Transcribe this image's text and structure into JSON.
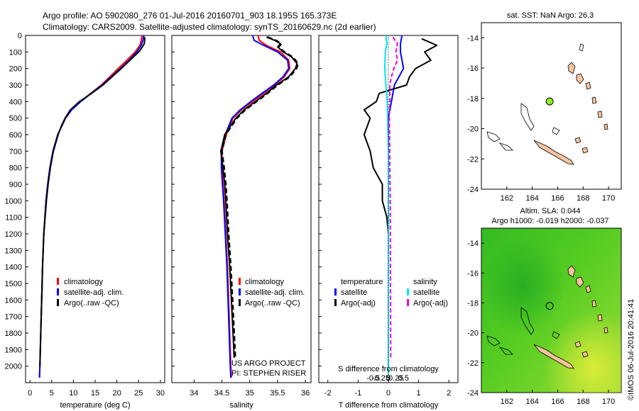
{
  "header": {
    "title_line1": "Argo profile: AO 5902080_276 01-Jul-2016 20160701_903 18.195S 165.373E",
    "title_line2": "Climatology: CARS2009. Satellite-adjusted climatology: synTS_20160629.nc (2d earlier)"
  },
  "colors": {
    "climatology": "#ff0000",
    "satellite": "#0000ff",
    "argo": "#000000",
    "temp_satellite": "#0000ff",
    "salinity_satellite": "#00e5ee",
    "salinity_argo": "#ee00ee",
    "land": "#f5c4a0",
    "float_marker": "#88ee22"
  },
  "depth_axis": {
    "ylim": [
      0,
      2100
    ],
    "ticks": [
      "0",
      "100",
      "200",
      "300",
      "400",
      "500",
      "600",
      "700",
      "800",
      "900",
      "1000",
      "1100",
      "1200",
      "1300",
      "1400",
      "1500",
      "1600",
      "1700",
      "1800",
      "1900",
      "2000"
    ]
  },
  "chart_data": [
    {
      "type": "line",
      "panel": "temperature",
      "xlabel": "temperature (deg C)",
      "xlim": [
        -1,
        31
      ],
      "xticks": [
        "0",
        "5",
        "10",
        "15",
        "20",
        "25",
        "30"
      ],
      "ylim": [
        0,
        2100
      ],
      "legend": [
        "climatology",
        "satellite-adj. clim.",
        "Argo(..raw -QC)"
      ],
      "series": [
        {
          "name": "climatology",
          "depth": [
            0,
            30,
            60,
            100,
            150,
            200,
            250,
            300,
            350,
            400,
            450,
            500,
            600,
            700,
            800,
            900,
            1000,
            1200,
            1400,
            1600,
            1800,
            2000,
            2070
          ],
          "values": [
            25.8,
            25.6,
            25.3,
            24.2,
            22.3,
            20.3,
            18.4,
            16.4,
            14.0,
            11.6,
            9.6,
            8.2,
            6.4,
            5.3,
            4.6,
            4.1,
            3.7,
            3.2,
            2.9,
            2.7,
            2.5,
            2.3,
            2.2
          ]
        },
        {
          "name": "satellite-adj. clim.",
          "depth": [
            0,
            30,
            60,
            100,
            150,
            200,
            250,
            300,
            350,
            400,
            450,
            500,
            600,
            700,
            800,
            900,
            1000,
            1200,
            1400,
            1600,
            1800,
            2000,
            2070
          ],
          "values": [
            26.2,
            26.0,
            25.6,
            24.6,
            22.8,
            20.8,
            18.7,
            16.6,
            14.1,
            11.7,
            9.6,
            8.2,
            6.4,
            5.3,
            4.6,
            4.1,
            3.7,
            3.2,
            2.9,
            2.7,
            2.5,
            2.3,
            2.2
          ]
        },
        {
          "name": "Argo(..raw -QC)",
          "depth": [
            10,
            30,
            50,
            80,
            100,
            150,
            200,
            250,
            300,
            350,
            400,
            450,
            500,
            550,
            600,
            700,
            800,
            900,
            1000,
            1200,
            1400,
            1600,
            1800,
            2000
          ],
          "values": [
            26.4,
            26.4,
            26.3,
            25.6,
            25.0,
            23.0,
            21.0,
            18.9,
            16.8,
            14.2,
            11.4,
            9.3,
            8.1,
            7.2,
            6.5,
            5.4,
            4.7,
            4.2,
            3.8,
            3.2,
            2.9,
            2.7,
            2.5,
            2.3
          ]
        }
      ]
    },
    {
      "type": "line",
      "panel": "salinity",
      "xlabel": "salinity",
      "xlim": [
        33.6,
        36.1
      ],
      "xticks": [
        "34",
        "34.5",
        "35",
        "35.5",
        "36"
      ],
      "ylim": [
        0,
        2100
      ],
      "legend": [
        "climatology",
        "satellite-adj. clim.",
        "Argo(..raw -QC)"
      ],
      "annotation": [
        "US ARGO PROJECT",
        "PI: STEPHEN RISER"
      ],
      "series": [
        {
          "name": "climatology",
          "depth": [
            0,
            30,
            60,
            100,
            150,
            200,
            250,
            300,
            350,
            400,
            450,
            500,
            600,
            700,
            800,
            900,
            1000,
            1200,
            1400,
            1600,
            1800,
            2000,
            2070
          ],
          "values": [
            35.15,
            35.17,
            35.3,
            35.55,
            35.7,
            35.72,
            35.62,
            35.45,
            35.25,
            35.05,
            34.85,
            34.7,
            34.58,
            34.5,
            34.5,
            34.52,
            34.54,
            34.57,
            34.6,
            34.62,
            34.64,
            34.66,
            34.67
          ]
        },
        {
          "name": "satellite-adj. clim.",
          "depth": [
            0,
            30,
            60,
            100,
            150,
            200,
            250,
            300,
            350,
            400,
            450,
            500,
            600,
            700,
            800,
            900,
            1000,
            1200,
            1400,
            1600,
            1800,
            2000,
            2070
          ],
          "values": [
            35.05,
            35.08,
            35.25,
            35.5,
            35.68,
            35.7,
            35.6,
            35.43,
            35.22,
            35.02,
            34.83,
            34.68,
            34.56,
            34.49,
            34.49,
            34.51,
            34.53,
            34.56,
            34.59,
            34.61,
            34.63,
            34.65,
            34.66
          ]
        },
        {
          "name": "Argo(..raw -QC)",
          "depth": [
            10,
            30,
            50,
            70,
            100,
            130,
            170,
            200,
            250,
            300,
            350,
            400,
            450,
            500,
            550,
            600,
            700,
            800,
            900,
            1000,
            1200,
            1400,
            1600,
            1800,
            1950
          ],
          "values": [
            35.3,
            35.45,
            35.55,
            35.5,
            35.6,
            35.75,
            35.85,
            35.82,
            35.7,
            35.48,
            35.3,
            35.1,
            34.9,
            34.75,
            34.65,
            34.55,
            34.48,
            34.52,
            34.55,
            34.57,
            34.6,
            34.64,
            34.67,
            34.7,
            34.72
          ]
        }
      ]
    },
    {
      "type": "line",
      "panel": "difference",
      "xlabel": "T difference from climatology",
      "xlabel2": "S difference from climatology",
      "xlim": [
        -2.3,
        2.3
      ],
      "xticks": [
        "-2",
        "-1",
        "0",
        "1",
        "2"
      ],
      "xticks_salinity": [
        "-0.5",
        "-0.25",
        "0",
        "0.25",
        "0.5"
      ],
      "ylim": [
        0,
        2100
      ],
      "legend_headers": [
        "temperature",
        "salinity"
      ],
      "legend": [
        "satellite",
        "Argo(-adj)",
        "satellite",
        "Argo(-adj)"
      ],
      "series": [
        {
          "name": "temperature satellite",
          "depth": [
            0,
            50,
            100,
            150,
            200,
            300,
            400,
            500,
            600,
            800,
            1000,
            1500,
            2000
          ],
          "values": [
            0.45,
            0.4,
            0.4,
            0.45,
            0.5,
            0.2,
            0.1,
            0.0,
            0.0,
            0.0,
            0.0,
            0.0,
            0.0
          ]
        },
        {
          "name": "temperature Argo(-adj)",
          "depth": [
            20,
            60,
            100,
            150,
            200,
            250,
            300,
            350,
            400,
            450,
            500,
            600,
            700,
            800,
            900,
            1000,
            1100,
            1200,
            1270
          ],
          "values": [
            1.1,
            1.6,
            1.2,
            1.4,
            0.9,
            0.7,
            0.6,
            -0.3,
            -0.4,
            -0.8,
            -0.6,
            -0.8,
            -0.6,
            -0.5,
            -0.2,
            -0.2,
            -0.05,
            0.0,
            0.0
          ]
        },
        {
          "name": "salinity satellite",
          "depth": [
            0,
            50,
            100,
            200,
            300,
            400,
            500,
            700,
            1000,
            1500,
            2000,
            2050
          ],
          "values": [
            -0.08,
            -0.05,
            -0.1,
            -0.12,
            -0.08,
            -0.04,
            -0.02,
            0.0,
            0.0,
            0.0,
            0.0,
            0.0
          ]
        },
        {
          "name": "salinity Argo(-adj)",
          "depth": [
            10,
            50,
            100,
            150,
            200,
            250,
            300,
            400,
            500,
            600,
            800,
            1000,
            1500,
            1950
          ],
          "values": [
            0.15,
            0.3,
            0.25,
            0.3,
            0.18,
            0.1,
            0.05,
            0.05,
            0.03,
            0.04,
            0.05,
            0.06,
            0.07,
            0.08
          ]
        }
      ]
    },
    {
      "type": "scatter",
      "panel": "sst_map",
      "title": "sat. SST: NaN Argo: 26.3",
      "xlim": [
        160,
        171
      ],
      "ylim": [
        -24,
        -13
      ],
      "xticks": [
        "162",
        "164",
        "166",
        "168",
        "170"
      ],
      "yticks": [
        "-14",
        "-16",
        "-18",
        "-20",
        "-22",
        "-24"
      ],
      "points": [
        {
          "x": 165.37,
          "y": -18.2,
          "label": "Argo float"
        }
      ]
    },
    {
      "type": "heatmap",
      "panel": "sla_map",
      "title_line1": "Altim. SLA: 0.044",
      "title_line2": "Argo h1000: -0.019 h2000: -0.037",
      "xlim": [
        160,
        171
      ],
      "ylim": [
        -24,
        -13
      ],
      "xticks": [
        "162",
        "164",
        "166",
        "168",
        "170"
      ],
      "yticks": [
        "-14",
        "-16",
        "-18",
        "-20",
        "-22",
        "-24"
      ],
      "points": [
        {
          "x": 165.37,
          "y": -18.2,
          "label": "Argo float"
        }
      ]
    }
  ],
  "footer": {
    "stamp": "©IMOS 06-Jul-2016 20:41:41"
  }
}
